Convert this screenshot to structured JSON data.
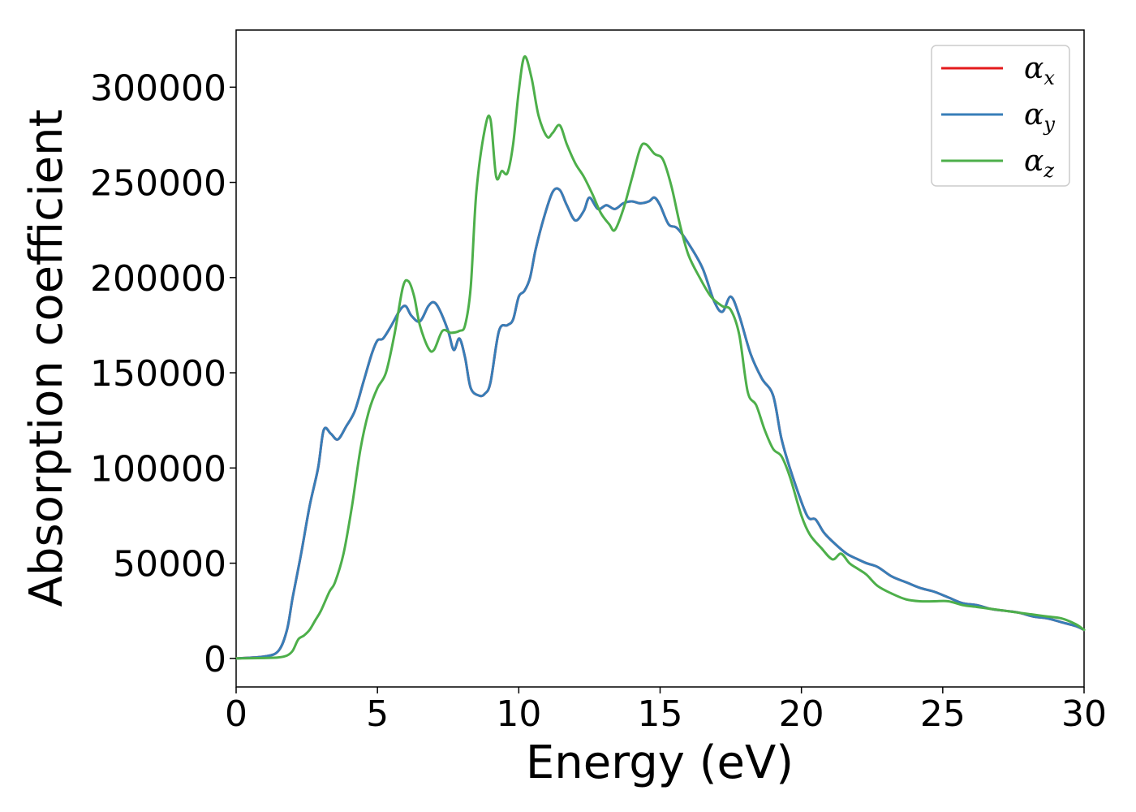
{
  "chart_data": {
    "type": "line",
    "xlabel": "Energy (eV)",
    "ylabel": "Absorption coefficient",
    "xlim": [
      0,
      30
    ],
    "ylim": [
      -15000,
      330000
    ],
    "xticks": [
      0,
      5,
      10,
      15,
      20,
      25,
      30
    ],
    "yticks": [
      0,
      50000,
      100000,
      150000,
      200000,
      250000,
      300000
    ],
    "grid": false,
    "legend_position": "top-right",
    "series": [
      {
        "name": "α",
        "subscript": "x",
        "color": "#e41a1c",
        "x": [
          0,
          1,
          1.5,
          1.8,
          2,
          2.3,
          2.6,
          2.9,
          3.1,
          3.35,
          3.6,
          3.9,
          4.2,
          4.5,
          4.8,
          5,
          5.2,
          5.5,
          5.8,
          6,
          6.2,
          6.5,
          6.8,
          7,
          7.2,
          7.5,
          7.7,
          7.9,
          8.1,
          8.3,
          8.6,
          8.8,
          9,
          9.3,
          9.6,
          9.8,
          10,
          10.2,
          10.4,
          10.6,
          10.9,
          11.2,
          11.45,
          11.7,
          12,
          12.3,
          12.5,
          12.8,
          13.1,
          13.4,
          13.7,
          14,
          14.3,
          14.6,
          14.8,
          15,
          15.3,
          15.6,
          16,
          16.5,
          16.9,
          17.2,
          17.5,
          17.8,
          18.2,
          18.6,
          19,
          19.3,
          19.7,
          20.2,
          20.5,
          20.8,
          21.2,
          21.6,
          22,
          22.3,
          22.7,
          23.2,
          23.7,
          24.2,
          24.7,
          25.2,
          25.7,
          26.2,
          26.7,
          27.2,
          27.7,
          28.2,
          28.7,
          29.2,
          29.7,
          30
        ],
        "y": [
          0,
          1000,
          4000,
          15000,
          32000,
          55000,
          80000,
          100000,
          120000,
          118000,
          115000,
          122000,
          130000,
          145000,
          160000,
          167000,
          168000,
          175000,
          183000,
          185000,
          180000,
          177000,
          185000,
          187000,
          183000,
          172000,
          162000,
          168000,
          158000,
          142000,
          138000,
          139000,
          145000,
          172000,
          175000,
          178000,
          190000,
          193000,
          200000,
          215000,
          232000,
          245000,
          246000,
          238000,
          230000,
          235000,
          242000,
          236000,
          238000,
          236000,
          239000,
          240000,
          239000,
          240000,
          242000,
          238000,
          228000,
          226000,
          218000,
          205000,
          188000,
          182000,
          190000,
          180000,
          160000,
          147000,
          138000,
          115000,
          95000,
          75000,
          73000,
          66000,
          60000,
          55000,
          52000,
          50000,
          48000,
          43000,
          40000,
          37000,
          35000,
          32000,
          29000,
          28000,
          26000,
          25000,
          24000,
          22000,
          21000,
          19000,
          17000,
          15000
        ]
      },
      {
        "name": "α",
        "subscript": "y",
        "color": "#377eb8",
        "x": [
          0,
          1,
          1.5,
          1.8,
          2,
          2.3,
          2.6,
          2.9,
          3.1,
          3.35,
          3.6,
          3.9,
          4.2,
          4.5,
          4.8,
          5,
          5.2,
          5.5,
          5.8,
          6,
          6.2,
          6.5,
          6.8,
          7,
          7.2,
          7.5,
          7.7,
          7.9,
          8.1,
          8.3,
          8.6,
          8.8,
          9,
          9.3,
          9.6,
          9.8,
          10,
          10.2,
          10.4,
          10.6,
          10.9,
          11.2,
          11.45,
          11.7,
          12,
          12.3,
          12.5,
          12.8,
          13.1,
          13.4,
          13.7,
          14,
          14.3,
          14.6,
          14.8,
          15,
          15.3,
          15.6,
          16,
          16.5,
          16.9,
          17.2,
          17.5,
          17.8,
          18.2,
          18.6,
          19,
          19.3,
          19.7,
          20.2,
          20.5,
          20.8,
          21.2,
          21.6,
          22,
          22.3,
          22.7,
          23.2,
          23.7,
          24.2,
          24.7,
          25.2,
          25.7,
          26.2,
          26.7,
          27.2,
          27.7,
          28.2,
          28.7,
          29.2,
          29.7,
          30
        ],
        "y": [
          0,
          1000,
          4000,
          15000,
          32000,
          55000,
          80000,
          100000,
          120000,
          118000,
          115000,
          122000,
          130000,
          145000,
          160000,
          167000,
          168000,
          175000,
          183000,
          185000,
          180000,
          177000,
          185000,
          187000,
          183000,
          172000,
          162000,
          168000,
          158000,
          142000,
          138000,
          139000,
          145000,
          172000,
          175000,
          178000,
          190000,
          193000,
          200000,
          215000,
          232000,
          245000,
          246000,
          238000,
          230000,
          235000,
          242000,
          236000,
          238000,
          236000,
          239000,
          240000,
          239000,
          240000,
          242000,
          238000,
          228000,
          226000,
          218000,
          205000,
          188000,
          182000,
          190000,
          180000,
          160000,
          147000,
          138000,
          115000,
          95000,
          75000,
          73000,
          66000,
          60000,
          55000,
          52000,
          50000,
          48000,
          43000,
          40000,
          37000,
          35000,
          32000,
          29000,
          28000,
          26000,
          25000,
          24000,
          22000,
          21000,
          19000,
          17000,
          15000
        ]
      },
      {
        "name": "α",
        "subscript": "z",
        "color": "#4daf4a",
        "x": [
          0,
          1,
          1.5,
          1.8,
          2,
          2.2,
          2.4,
          2.6,
          2.8,
          3,
          3.3,
          3.5,
          3.8,
          4.1,
          4.4,
          4.7,
          5,
          5.3,
          5.6,
          5.9,
          6.1,
          6.3,
          6.5,
          6.8,
          7,
          7.3,
          7.6,
          7.9,
          8.1,
          8.3,
          8.5,
          8.8,
          9,
          9.2,
          9.4,
          9.6,
          9.8,
          10,
          10.2,
          10.45,
          10.7,
          11,
          11.2,
          11.45,
          11.7,
          12,
          12.3,
          12.6,
          12.9,
          13.2,
          13.4,
          13.7,
          14,
          14.3,
          14.5,
          14.8,
          15.1,
          15.4,
          15.7,
          16,
          16.4,
          16.8,
          17.2,
          17.5,
          17.8,
          18.1,
          18.4,
          18.7,
          19,
          19.3,
          19.6,
          20,
          20.3,
          20.7,
          21.1,
          21.4,
          21.7,
          22,
          22.3,
          22.7,
          23.2,
          23.7,
          24.2,
          24.7,
          25.2,
          25.7,
          26.2,
          26.7,
          27.2,
          27.7,
          28.2,
          28.7,
          29.2,
          29.7,
          30
        ],
        "y": [
          0,
          200,
          500,
          1500,
          4000,
          10000,
          12000,
          15000,
          20000,
          25000,
          35000,
          40000,
          55000,
          80000,
          110000,
          130000,
          142000,
          150000,
          170000,
          195000,
          198000,
          190000,
          175000,
          163000,
          162000,
          172000,
          171000,
          172000,
          175000,
          195000,
          245000,
          278000,
          283000,
          253000,
          256000,
          255000,
          270000,
          298000,
          316000,
          305000,
          285000,
          274000,
          276000,
          280000,
          270000,
          260000,
          253000,
          244000,
          234000,
          228000,
          225000,
          236000,
          252000,
          268000,
          270000,
          265000,
          262000,
          248000,
          228000,
          212000,
          200000,
          190000,
          185000,
          183000,
          170000,
          140000,
          133000,
          120000,
          110000,
          106000,
          95000,
          75000,
          65000,
          58000,
          52000,
          55000,
          50000,
          47000,
          44000,
          38000,
          34000,
          31000,
          30000,
          30000,
          30000,
          28000,
          27000,
          26000,
          25000,
          24000,
          23000,
          22000,
          21000,
          18000,
          15000
        ]
      }
    ]
  }
}
